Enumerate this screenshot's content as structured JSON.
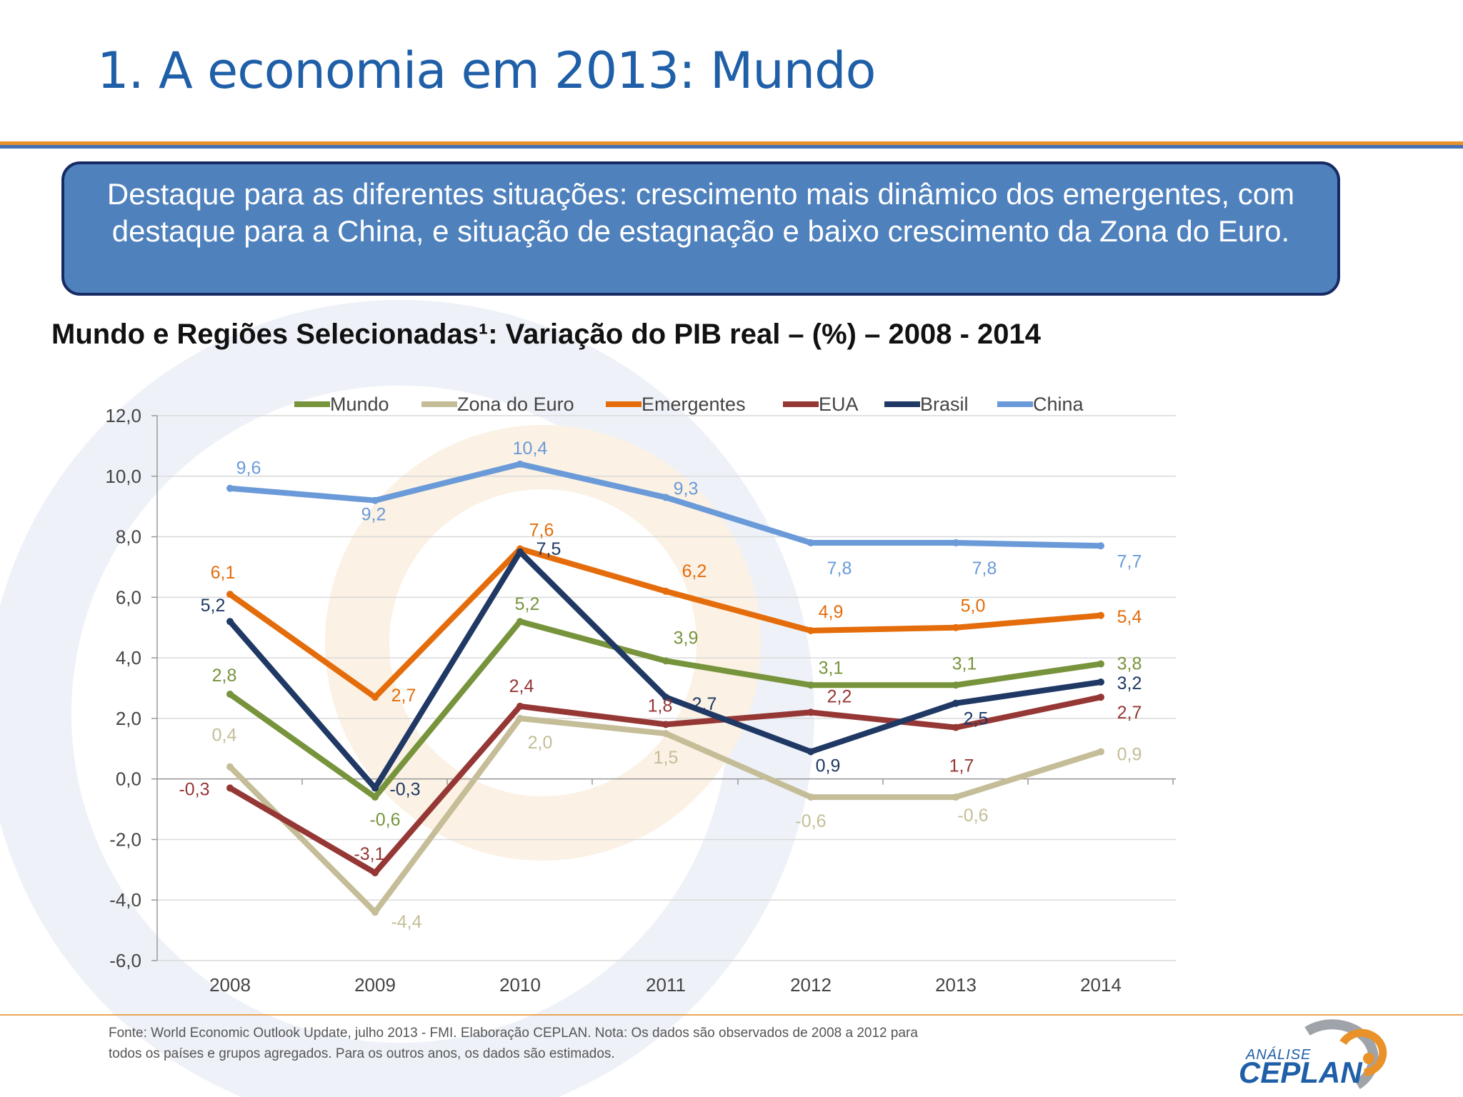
{
  "slide": {
    "title": "1. A economia em 2013: Mundo",
    "callout": "Destaque para as diferentes situações: crescimento mais dinâmico dos emergentes, com destaque para a China, e situação de estagnação e baixo crescimento da Zona do Euro.",
    "chart_heading": "Mundo e Regiões Selecionadas¹: Variação do PIB real – (%) – 2008 - 2014",
    "source_line1": "Fonte: World Economic Outlook Update, julho 2013 - FMI. Elaboração CEPLAN. Nota: Os dados são observados de 2008 a 2012 para",
    "source_line2": "todos os países e grupos agregados. Para os outros anos, os dados são estimados.",
    "logo_small": "ANÁLISE",
    "logo_big": "CEPLAN"
  },
  "colors": {
    "title": "#1f5fa8",
    "callout_bg": "#4f81bd",
    "callout_border": "#172a63",
    "accent_orange": "#e9922a"
  },
  "chart_data": {
    "type": "line",
    "categories": [
      "2008",
      "2009",
      "2010",
      "2011",
      "2012",
      "2013",
      "2014"
    ],
    "ylim": [
      -6,
      12
    ],
    "yticks": [
      "12,0",
      "10,0",
      "8,0",
      "6,0",
      "4,0",
      "2,0",
      "0,0",
      "-2,0",
      "-4,0",
      "-6,0"
    ],
    "ytick_values": [
      12,
      10,
      8,
      6,
      4,
      2,
      0,
      -2,
      -4,
      -6
    ],
    "grid": true,
    "legend_position": "top",
    "series": [
      {
        "name": "Mundo",
        "color": "#77933c",
        "values": [
          2.8,
          -0.6,
          5.2,
          3.9,
          3.1,
          3.1,
          3.8
        ],
        "labels": [
          "2,8",
          "-0,6",
          "5,2",
          "3,9",
          "3,1",
          "3,1",
          "3,8"
        ]
      },
      {
        "name": "Zona do Euro",
        "color": "#c4bd97",
        "values": [
          0.4,
          -4.4,
          2.0,
          1.5,
          -0.6,
          -0.6,
          0.9
        ],
        "labels": [
          "0,4",
          "-4,4",
          "2,0",
          "1,5",
          "-0,6",
          "-0,6",
          "0,9"
        ]
      },
      {
        "name": "Emergentes",
        "color": "#e46c0a",
        "values": [
          6.1,
          2.7,
          7.6,
          6.2,
          4.9,
          5.0,
          5.4
        ],
        "labels": [
          "6,1",
          "2,7",
          "7,6",
          "6,2",
          "4,9",
          "5,0",
          "5,4"
        ]
      },
      {
        "name": "EUA",
        "color": "#953735",
        "values": [
          -0.3,
          -3.1,
          2.4,
          1.8,
          2.2,
          1.7,
          2.7
        ],
        "labels": [
          "-0,3",
          "-3,1",
          "2,4",
          "1,8",
          "2,2",
          "1,7",
          "2,7"
        ]
      },
      {
        "name": "Brasil",
        "color": "#1f3864",
        "values": [
          5.2,
          -0.3,
          7.5,
          2.7,
          0.9,
          2.5,
          3.2
        ],
        "labels": [
          "5,2",
          "-0,3",
          "7,5",
          "2,7",
          "0,9",
          "2,5",
          "3,2"
        ]
      },
      {
        "name": "China",
        "color": "#6a9ad8",
        "values": [
          9.6,
          9.2,
          10.4,
          9.3,
          7.8,
          7.8,
          7.7
        ],
        "labels": [
          "9,6",
          "9,2",
          "10,4",
          "9,3",
          "7,8",
          "7,8",
          "7,7"
        ]
      }
    ]
  }
}
